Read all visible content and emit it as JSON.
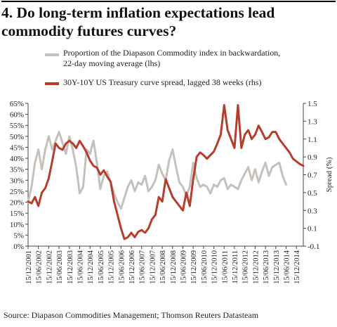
{
  "title": "4. Do long-term inflation expectations lead commodity futures curves?",
  "source": "Source: Diapason Commodities Management; Thomson Reuters Datasteam",
  "colors": {
    "grey_series": "#c5c0bb",
    "red_series": "#b73c2b"
  },
  "chart_data": {
    "type": "line",
    "title": "4. Do long-term inflation expectations lead commodity futures curves?",
    "legend_placement": "top",
    "grid": false,
    "xlabel": "",
    "x_ticks": [
      "15/12/2001",
      "15/06/2002",
      "15/12/2002",
      "15/06/2003",
      "15/12/2003",
      "15/06/2004",
      "15/12/2004",
      "15/06/2005",
      "15/12/2005",
      "15/06/2006",
      "15/12/2006",
      "15/06/2007",
      "15/12/2007",
      "15/06/2008",
      "15/12/2008",
      "15/06/2009",
      "15/12/2009",
      "15/06/2010",
      "15/12/2010",
      "15/06/2011",
      "15/12/2011",
      "15/06/2012",
      "15/12/2012",
      "15/06/2013",
      "15/12/2013",
      "15/06/2014",
      "15/12/2014"
    ],
    "y_left": {
      "label": "",
      "ticks": [
        "0%",
        "5%",
        "10%",
        "15%",
        "20%",
        "25%",
        "30%",
        "35%",
        "40%",
        "45%",
        "50%",
        "55%",
        "60%",
        "65%"
      ],
      "range": [
        0,
        65
      ]
    },
    "y_right": {
      "label": "Spread (%)",
      "ticks": [
        "-0.1",
        "0.1",
        "0.3",
        "0.5",
        "0.7",
        "0.9",
        "1.1",
        "1.3",
        "1.5"
      ],
      "range": [
        -0.1,
        1.5
      ]
    },
    "series": [
      {
        "name": "Proportion of the Diapason Commodity index in backwardation,\n22-day moving average (lhs)",
        "axis": "left",
        "x": [
          "2001-12",
          "2002-02",
          "2002-04",
          "2002-06",
          "2002-08",
          "2002-10",
          "2002-12",
          "2003-02",
          "2003-04",
          "2003-06",
          "2003-08",
          "2003-10",
          "2003-12",
          "2004-02",
          "2004-04",
          "2004-06",
          "2004-08",
          "2004-10",
          "2004-12",
          "2005-02",
          "2005-04",
          "2005-06",
          "2005-08",
          "2005-10",
          "2005-12",
          "2006-02",
          "2006-04",
          "2006-06",
          "2006-08",
          "2006-10",
          "2006-12",
          "2007-02",
          "2007-04",
          "2007-06",
          "2007-08",
          "2007-10",
          "2007-12",
          "2008-02",
          "2008-04",
          "2008-06",
          "2008-08",
          "2008-10",
          "2008-12",
          "2009-02",
          "2009-04",
          "2009-06",
          "2009-08",
          "2009-10",
          "2009-12",
          "2010-02",
          "2010-04",
          "2010-06",
          "2010-08",
          "2010-10",
          "2010-12",
          "2011-02",
          "2011-04",
          "2011-06",
          "2011-08",
          "2011-10",
          "2011-12",
          "2012-02",
          "2012-04",
          "2012-06",
          "2012-08",
          "2012-10",
          "2012-12",
          "2013-02",
          "2013-04",
          "2013-06",
          "2013-08",
          "2013-10",
          "2013-12",
          "2014-02",
          "2014-04",
          "2014-06"
        ],
        "values": [
          20,
          27,
          38,
          44,
          35,
          44,
          50,
          44,
          48,
          52,
          47,
          42,
          50,
          44,
          36,
          24,
          27,
          44,
          42,
          48,
          38,
          26,
          32,
          34,
          29,
          24,
          20,
          17,
          22,
          27,
          30,
          25,
          29,
          28,
          32,
          25,
          27,
          30,
          37,
          33,
          30,
          39,
          44,
          36,
          29,
          27,
          23,
          27,
          38,
          31,
          27,
          28,
          27,
          24,
          28,
          27,
          30,
          31,
          26,
          28,
          27,
          26,
          30,
          33,
          36,
          30,
          35,
          29,
          34,
          38,
          32,
          36,
          37,
          38,
          32,
          28
        ]
      },
      {
        "name": "30Y-10Y US Treasury curve spread, lagged 38 weeks (rhs)",
        "axis": "right",
        "x": [
          "2001-12",
          "2002-02",
          "2002-04",
          "2002-06",
          "2002-08",
          "2002-10",
          "2002-12",
          "2003-02",
          "2003-04",
          "2003-06",
          "2003-08",
          "2003-10",
          "2003-12",
          "2004-02",
          "2004-04",
          "2004-06",
          "2004-08",
          "2004-10",
          "2004-12",
          "2005-02",
          "2005-04",
          "2005-06",
          "2005-08",
          "2005-10",
          "2005-12",
          "2006-02",
          "2006-04",
          "2006-06",
          "2006-08",
          "2006-10",
          "2006-12",
          "2007-02",
          "2007-04",
          "2007-06",
          "2007-08",
          "2007-10",
          "2007-12",
          "2008-02",
          "2008-04",
          "2008-06",
          "2008-08",
          "2008-10",
          "2008-12",
          "2009-02",
          "2009-04",
          "2009-06",
          "2009-08",
          "2009-10",
          "2009-12",
          "2010-02",
          "2010-04",
          "2010-06",
          "2010-08",
          "2010-10",
          "2010-12",
          "2011-02",
          "2011-04",
          "2011-06",
          "2011-08",
          "2011-10",
          "2011-12",
          "2012-02",
          "2012-04",
          "2012-06",
          "2012-08",
          "2012-10",
          "2012-12",
          "2013-02",
          "2013-04",
          "2013-06",
          "2013-08",
          "2013-10",
          "2013-12",
          "2014-02",
          "2014-04",
          "2014-06",
          "2014-08",
          "2014-10",
          "2014-12",
          "2015-02",
          "2015-04"
        ],
        "values": [
          0.4,
          0.38,
          0.45,
          0.35,
          0.5,
          0.55,
          0.66,
          0.85,
          1.05,
          1.0,
          0.98,
          1.05,
          1.08,
          1.05,
          1.0,
          1.08,
          1.02,
          0.95,
          0.86,
          0.8,
          0.78,
          0.7,
          0.75,
          0.68,
          0.62,
          0.4,
          0.25,
          0.1,
          -0.02,
          0.0,
          0.05,
          0.0,
          0.06,
          0.08,
          0.05,
          0.1,
          0.2,
          0.25,
          0.45,
          0.4,
          0.65,
          0.55,
          0.45,
          0.4,
          0.35,
          0.3,
          0.5,
          0.35,
          0.65,
          0.9,
          0.95,
          0.92,
          0.88,
          0.92,
          0.96,
          1.05,
          1.15,
          1.48,
          1.2,
          1.1,
          1.0,
          1.48,
          1.0,
          1.15,
          1.2,
          1.1,
          1.15,
          1.25,
          1.18,
          1.1,
          1.12,
          1.18,
          1.18,
          1.1,
          1.05,
          1.0,
          0.95,
          0.88,
          0.85,
          0.82,
          0.8
        ]
      }
    ]
  }
}
